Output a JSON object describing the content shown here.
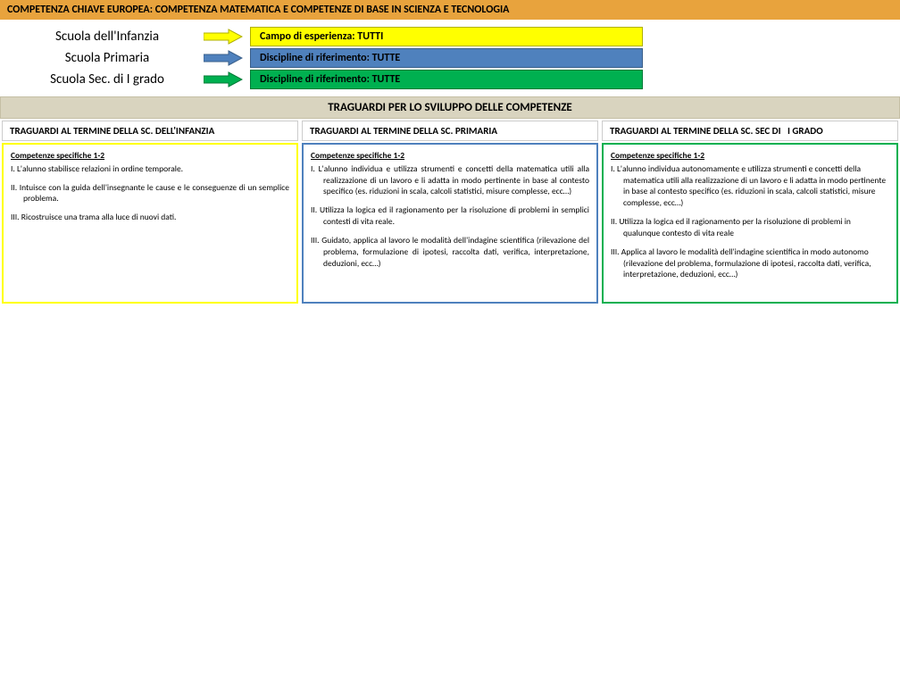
{
  "header": {
    "label": "COMPETENZA CHIAVE EUROPEA:",
    "title": "COMPETENZA MATEMATICA E COMPETENZE DI BASE IN SCIENZA E TECNOLOGIA"
  },
  "schools": [
    {
      "name": "Scuola dell'Infanzia",
      "arrow_fill": "#ffff00",
      "arrow_stroke": "#b0b000",
      "pill_class": "pill-yellow",
      "pill_text": "Campo di esperienza: TUTTI"
    },
    {
      "name": "Scuola Primaria",
      "arrow_fill": "#4f81bd",
      "arrow_stroke": "#3a5f8a",
      "pill_class": "pill-blue",
      "pill_text": "Discipline di riferimento: TUTTE"
    },
    {
      "name": "Scuola Sec. di I grado",
      "arrow_fill": "#00b050",
      "arrow_stroke": "#007a37",
      "pill_class": "pill-green",
      "pill_text": "Discipline di riferimento: TUTTE"
    }
  ],
  "section_title": "TRAGUARDI PER LO SVILUPPO DELLE COMPETENZE",
  "col_headers": [
    "TRAGUARDI AL TERMINE DELLA SC. DELL'INFANZIA",
    "TRAGUARDI AL TERMINE DELLA SC. PRIMARIA",
    "TRAGUARDI AL TERMINE DELLA SC. SEC DI   I  GRADO"
  ],
  "columns": [
    {
      "border": "col-y",
      "subtitle": "Competenze specifiche 1-2",
      "items": [
        "I. L'alunno stabilisce relazioni in ordine temporale.",
        "II. Intuisce con la guida dell'insegnante le cause e le conseguenze di un semplice problema.",
        "III. Ricostruisce una trama alla luce di nuovi dati."
      ],
      "justify": true
    },
    {
      "border": "col-b",
      "subtitle": "Competenze specifiche 1-2",
      "items": [
        "I. L'alunno individua e utilizza strumenti e concetti della matematica utili alla realizzazione di un lavoro e li adatta in modo pertinente in base al contesto specifico (es. riduzioni in scala, calcoli statistici, misure complesse, ecc…)",
        "II. Utilizza la logica ed il ragionamento per la risoluzione di problemi in semplici contesti di vita reale.",
        "III. Guidato, applica al lavoro le modalità dell'indagine scientifica (rilevazione del problema, formulazione di ipotesi, raccolta dati, verifica, interpretazione, deduzioni, ecc…)"
      ],
      "justify": true
    },
    {
      "border": "col-g",
      "subtitle": "Competenze specifiche 1-2",
      "items": [
        "I.   L'alunno individua autonomamente e utilizza strumenti e concetti della matematica utili alla realizzazione di un lavoro e li adatta in modo pertinente in base al contesto specifico (es. riduzioni in scala, calcoli statistici, misure complesse, ecc…)",
        "II.  Utilizza la logica ed il ragionamento per la risoluzione di problemi in qualunque contesto di vita reale",
        "III. Applica al lavoro le modalità dell'indagine scientifica in modo autonomo (rilevazione del problema, formulazione di ipotesi, raccolta dati, verifica, interpretazione, deduzioni, ecc…)"
      ],
      "justify": false
    }
  ]
}
